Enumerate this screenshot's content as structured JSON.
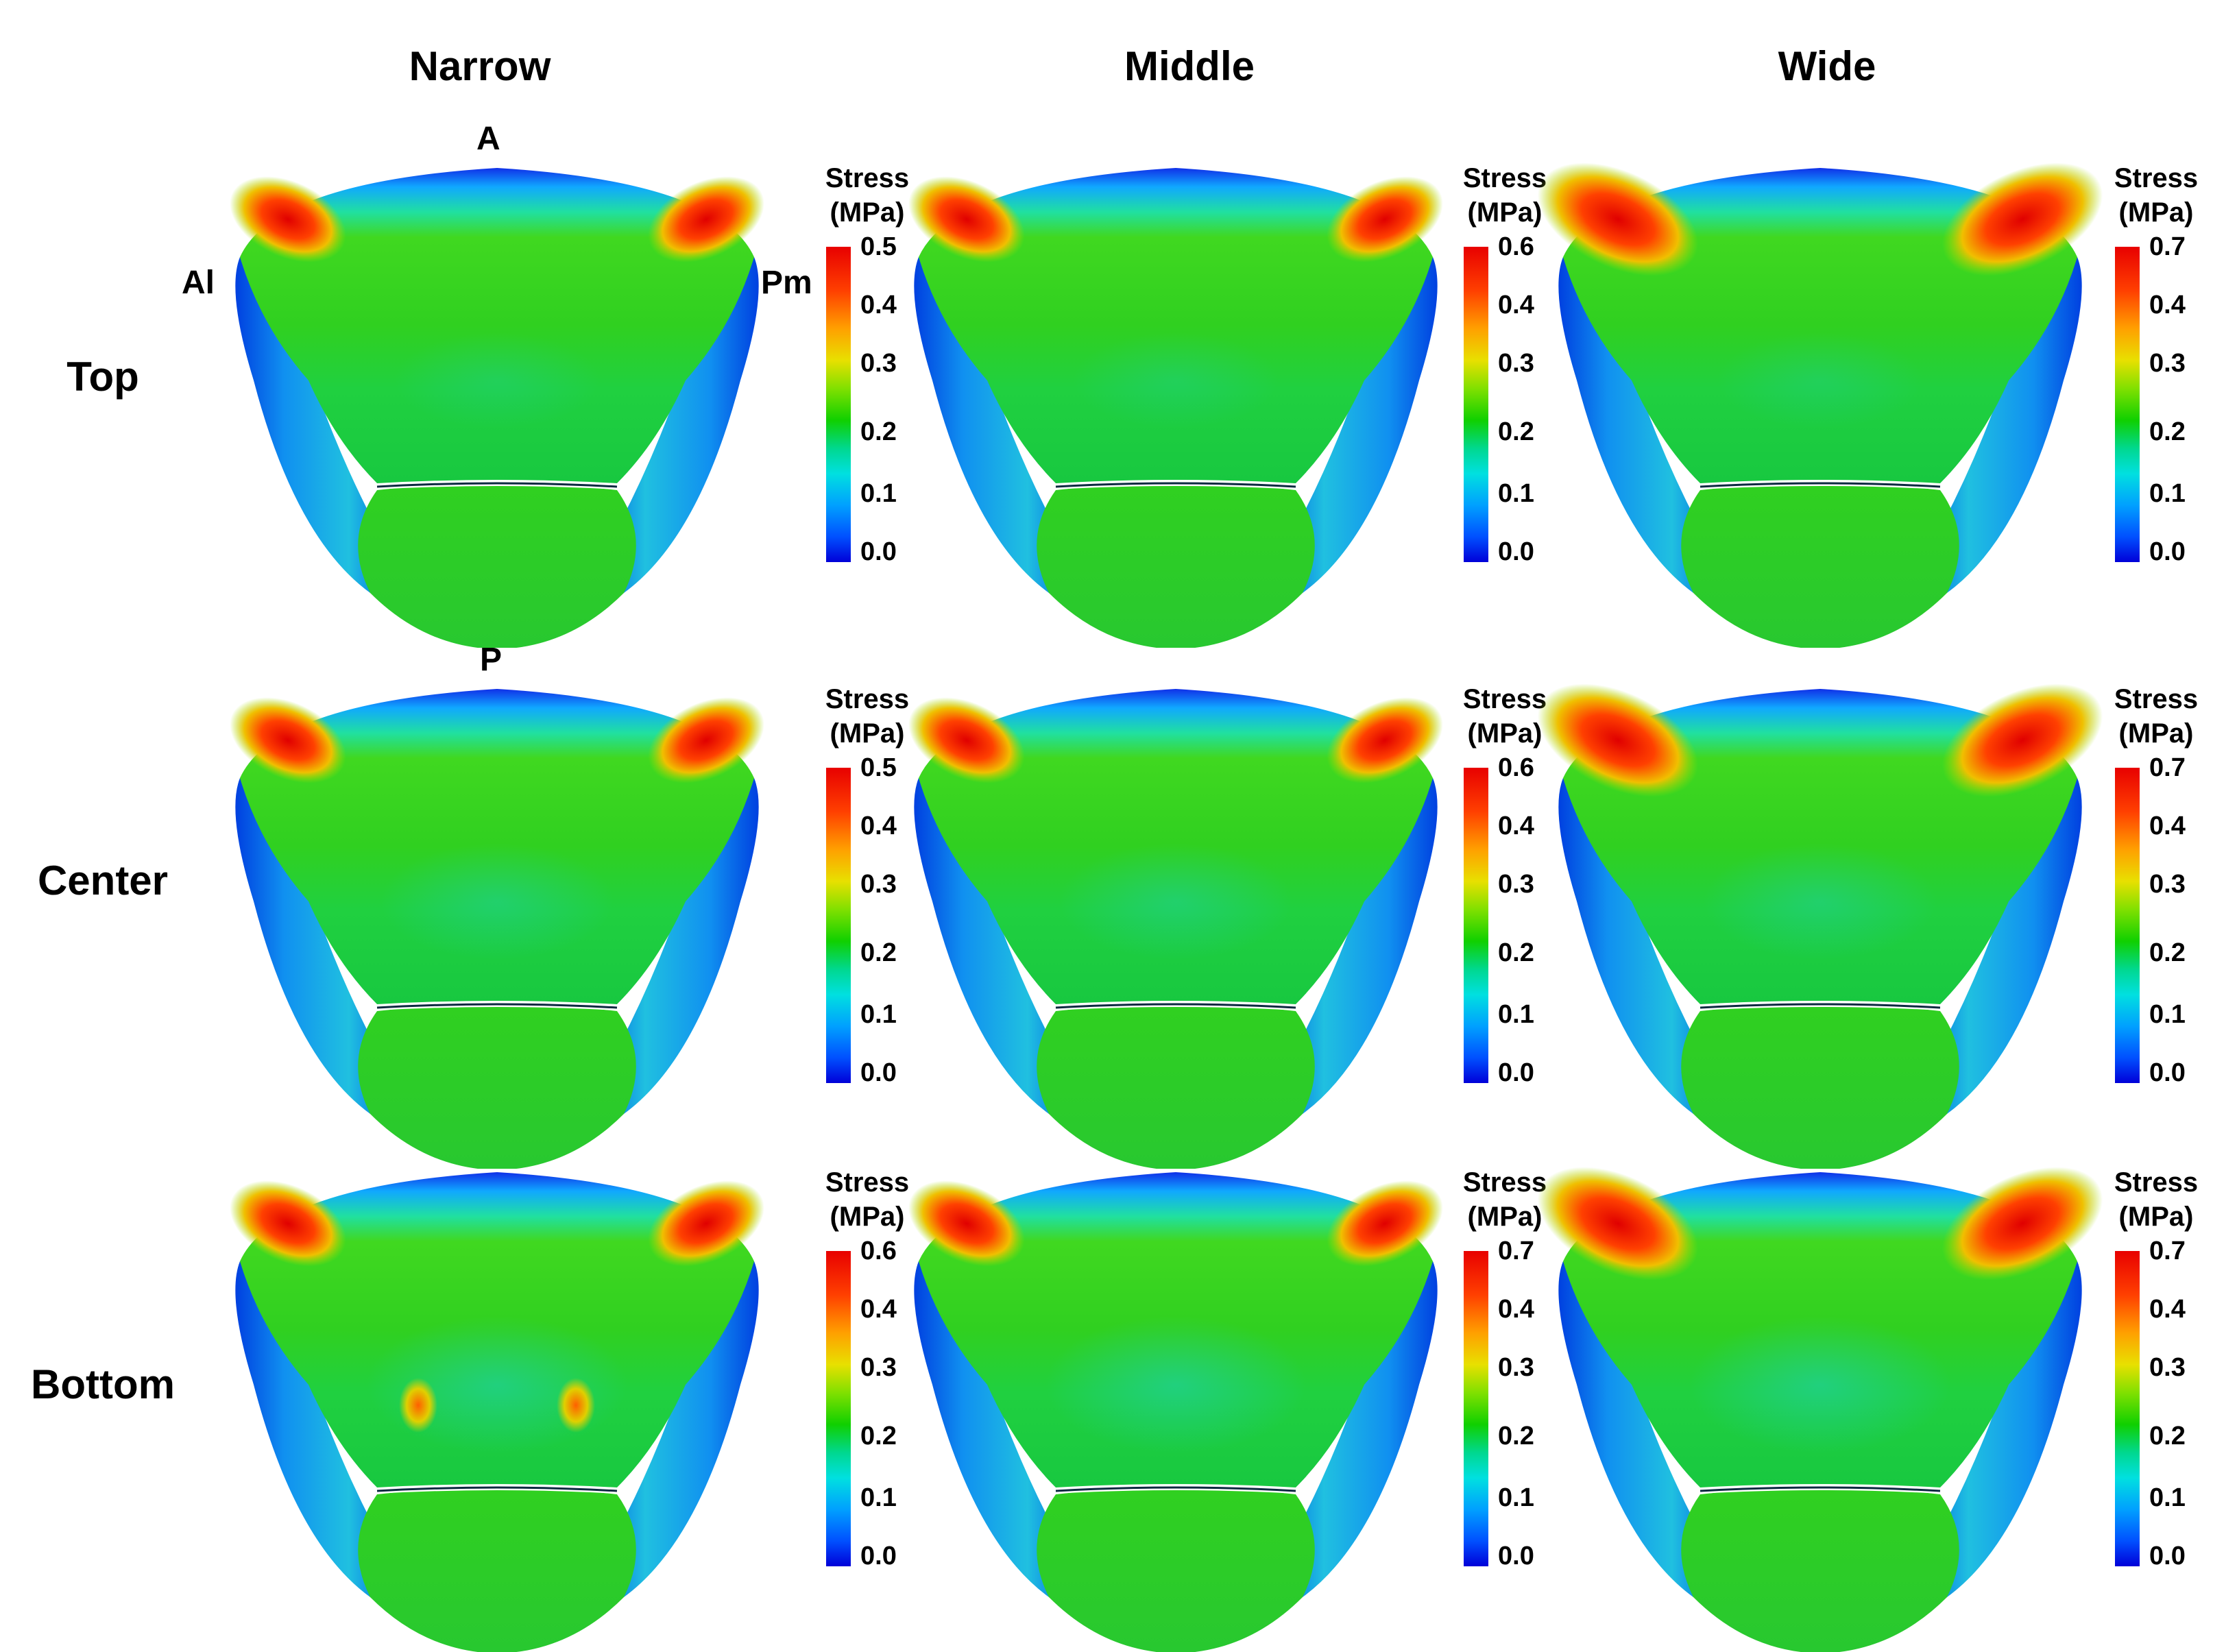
{
  "columns": [
    "Narrow",
    "Middle",
    "Wide"
  ],
  "rows": [
    "Top",
    "Center",
    "Bottom"
  ],
  "orientation": {
    "anterior": "A",
    "posterior": "P",
    "left": "Al",
    "right": "Pm"
  },
  "colorbar": {
    "title_line1": "Stress",
    "title_line2": "(MPa)",
    "colors": {
      "min": "#0000d8",
      "low": "#00a0ff",
      "mid": "#10d000",
      "high": "#e8e000",
      "max": "#e80000"
    }
  },
  "panels": [
    {
      "row": "Top",
      "column": "Narrow",
      "stress_max": 0.5,
      "ticks": [
        "0.5",
        "0.4",
        "0.3",
        "0.2",
        "0.1",
        "0.0"
      ]
    },
    {
      "row": "Top",
      "column": "Middle",
      "stress_max": 0.6,
      "ticks": [
        "0.6",
        "0.4",
        "0.3",
        "0.2",
        "0.1",
        "0.0"
      ]
    },
    {
      "row": "Top",
      "column": "Wide",
      "stress_max": 0.7,
      "ticks": [
        "0.7",
        "0.4",
        "0.3",
        "0.2",
        "0.1",
        "0.0"
      ]
    },
    {
      "row": "Center",
      "column": "Narrow",
      "stress_max": 0.5,
      "ticks": [
        "0.5",
        "0.4",
        "0.3",
        "0.2",
        "0.1",
        "0.0"
      ]
    },
    {
      "row": "Center",
      "column": "Middle",
      "stress_max": 0.6,
      "ticks": [
        "0.6",
        "0.4",
        "0.3",
        "0.2",
        "0.1",
        "0.0"
      ]
    },
    {
      "row": "Center",
      "column": "Wide",
      "stress_max": 0.7,
      "ticks": [
        "0.7",
        "0.4",
        "0.3",
        "0.2",
        "0.1",
        "0.0"
      ]
    },
    {
      "row": "Bottom",
      "column": "Narrow",
      "stress_max": 0.6,
      "ticks": [
        "0.6",
        "0.4",
        "0.3",
        "0.2",
        "0.1",
        "0.0"
      ]
    },
    {
      "row": "Bottom",
      "column": "Middle",
      "stress_max": 0.7,
      "ticks": [
        "0.7",
        "0.4",
        "0.3",
        "0.2",
        "0.1",
        "0.0"
      ]
    },
    {
      "row": "Bottom",
      "column": "Wide",
      "stress_max": 0.7,
      "ticks": [
        "0.7",
        "0.4",
        "0.3",
        "0.2",
        "0.1",
        "0.0"
      ]
    }
  ]
}
